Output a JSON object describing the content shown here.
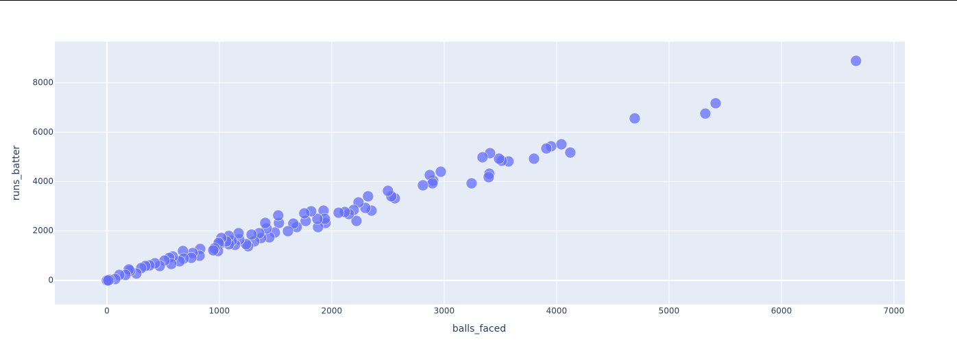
{
  "chart_data": {
    "type": "scatter",
    "x_label": "balls_faced",
    "y_label": "runs_batter",
    "xlim": [
      -463,
      7098
    ],
    "ylim": [
      -969,
      9661
    ],
    "xticks": [
      0,
      1000,
      2000,
      3000,
      4000,
      5000,
      6000,
      7000
    ],
    "yticks": [
      0,
      2000,
      4000,
      6000,
      8000
    ],
    "grid": true,
    "color": "#636efa",
    "x": [
      6663,
      5323,
      5415,
      4695,
      4122,
      4043,
      3951,
      3909,
      3799,
      3573,
      3512,
      3488,
      3408,
      3341,
      3402,
      3396,
      3244,
      2970,
      2902,
      2872,
      2896,
      2811,
      2561,
      2530,
      2500,
      2354,
      2323,
      2299,
      2238,
      2220,
      2195,
      2152,
      2116,
      2061,
      1945,
      1927,
      1939,
      1878,
      1872,
      1817,
      1768,
      1756,
      1689,
      1658,
      1610,
      1530,
      1524,
      1494,
      1445,
      1421,
      1409,
      1372,
      1354,
      1311,
      1287,
      1256,
      1238,
      1177,
      1171,
      1140,
      1110,
      1085,
      1085,
      1061,
      1018,
      1000,
      994,
      988,
      958,
      946,
      830,
      824,
      763,
      751,
      677,
      683,
      647,
      586,
      555,
      573,
      512,
      470,
      427,
      378,
      341,
      305,
      262,
      207,
      195,
      165,
      110,
      73,
      24,
      0,
      12
    ],
    "y": [
      8886,
      6754,
      7170,
      6560,
      5176,
      5509,
      5426,
      5342,
      4927,
      4816,
      4844,
      4927,
      5149,
      4983,
      4318,
      4180,
      3930,
      4401,
      4041,
      4263,
      3930,
      3848,
      3322,
      3405,
      3626,
      2824,
      3405,
      2934,
      3156,
      2408,
      2851,
      2685,
      2768,
      2740,
      2325,
      2824,
      2491,
      2159,
      2491,
      2796,
      2408,
      2713,
      2159,
      2298,
      1993,
      2325,
      2630,
      1938,
      1744,
      2104,
      2325,
      1716,
      1910,
      1578,
      1855,
      1384,
      1467,
      1661,
      1910,
      1439,
      1606,
      1467,
      1799,
      1578,
      1716,
      1467,
      1522,
      1190,
      1301,
      1218,
      1273,
      997,
      1107,
      913,
      1190,
      886,
      775,
      969,
      913,
      664,
      803,
      581,
      692,
      609,
      581,
      498,
      277,
      388,
      443,
      221,
      221,
      55,
      28,
      0,
      0
    ]
  }
}
